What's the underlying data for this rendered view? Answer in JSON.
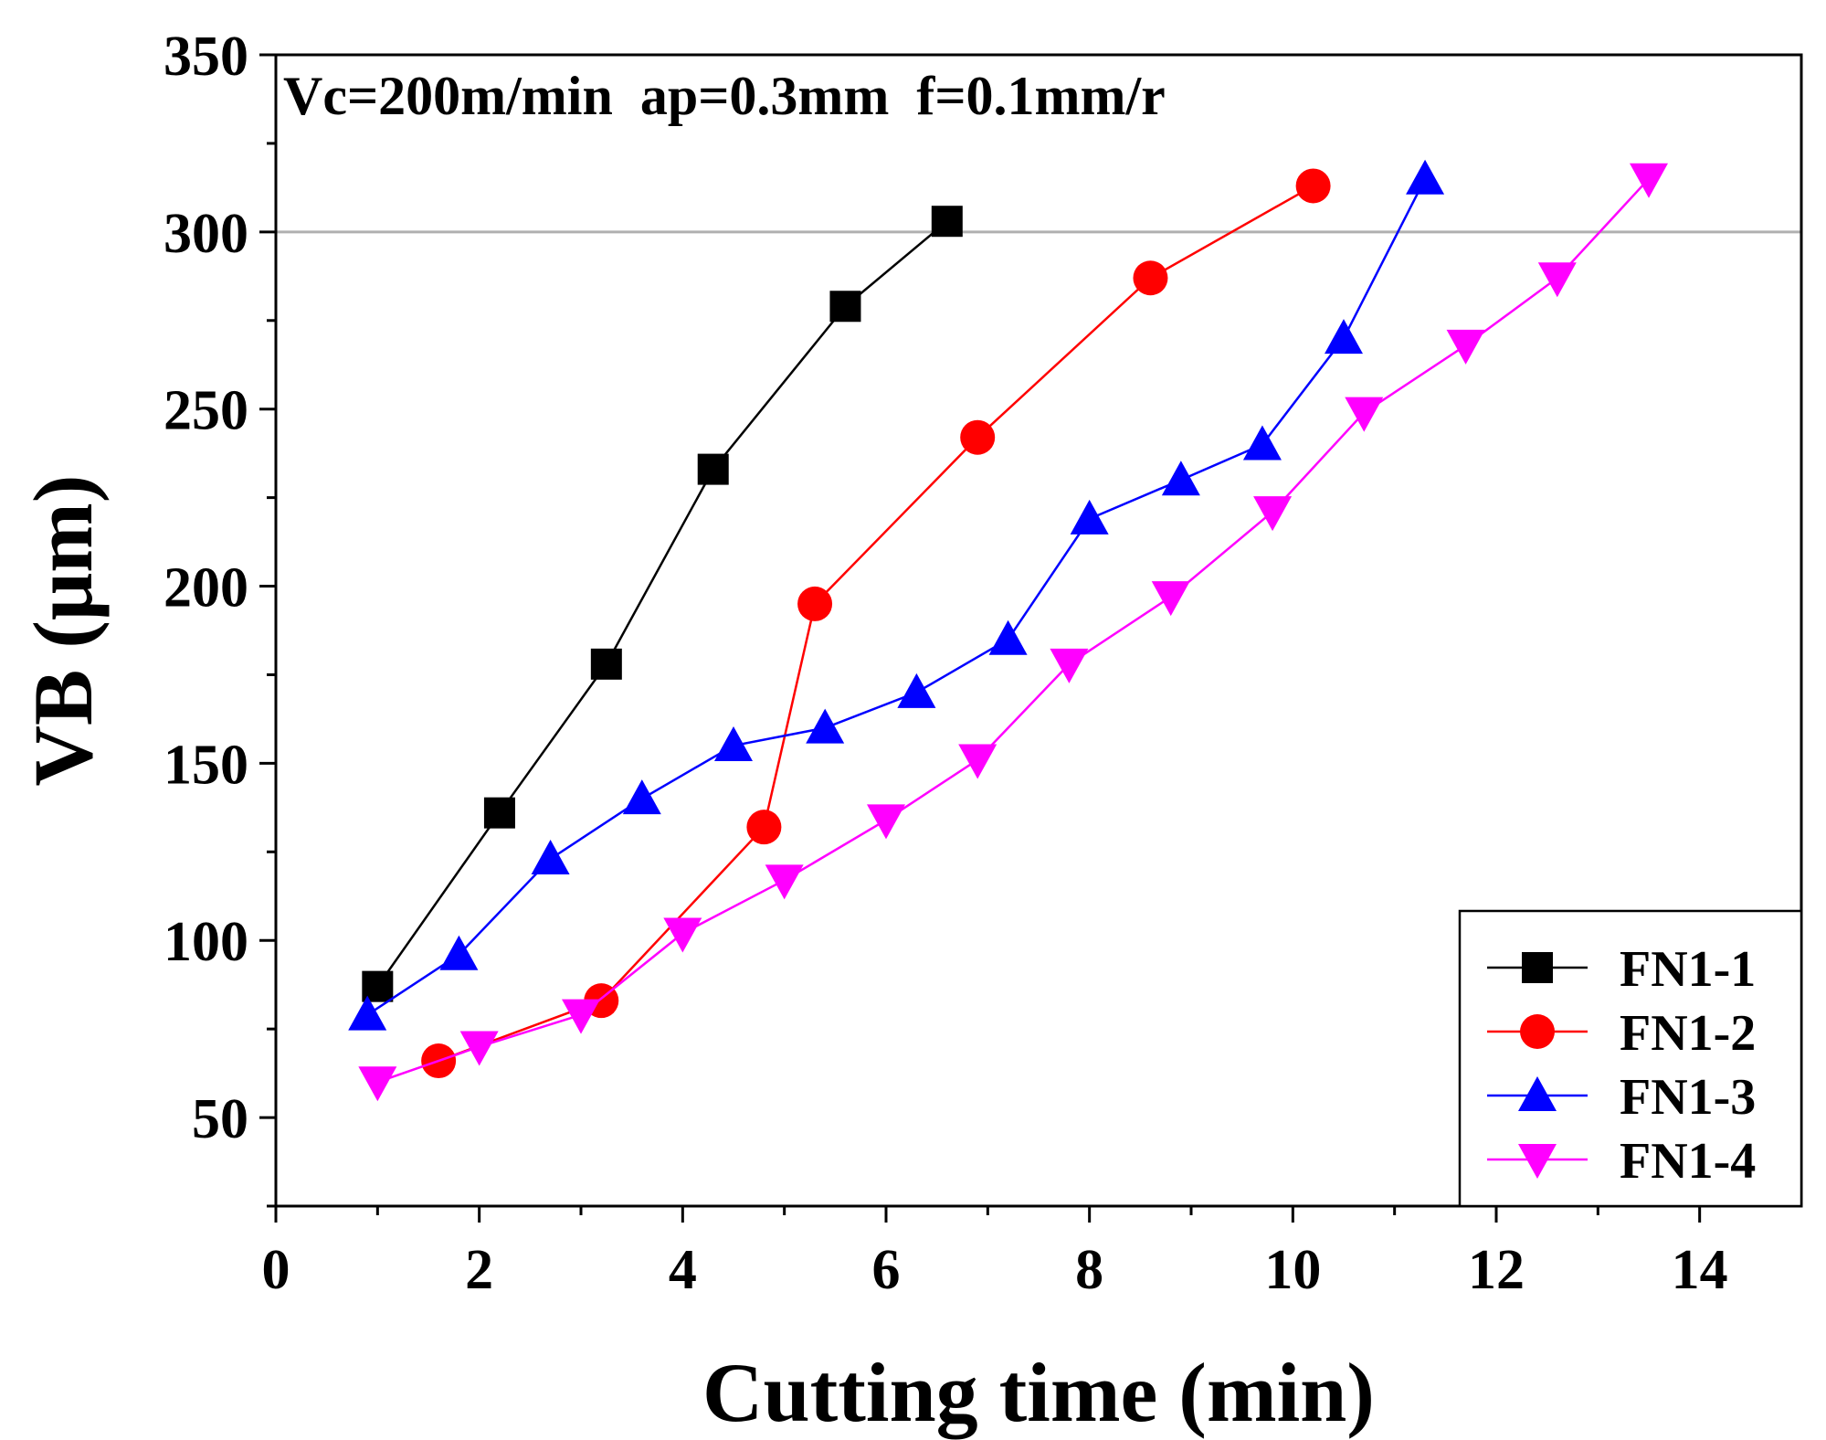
{
  "chart_data": {
    "type": "line",
    "title": "",
    "annotation": "Vc=200m/min  ap=0.3mm  f=0.1mm/r",
    "xlabel": "Cutting time (min)",
    "ylabel": "VB (μm)",
    "xlim": [
      0,
      15
    ],
    "ylim": [
      25,
      350
    ],
    "x_ticks": [
      0,
      2,
      4,
      6,
      8,
      10,
      12,
      14
    ],
    "y_ticks": [
      50,
      100,
      150,
      200,
      250,
      300,
      350
    ],
    "x_tick_labels": [
      "0",
      "2",
      "4",
      "6",
      "8",
      "10",
      "12",
      "14"
    ],
    "y_tick_labels": [
      "50",
      "100",
      "150",
      "200",
      "250",
      "300",
      "350"
    ],
    "reference_line": {
      "y": 300,
      "color": "#b0b0b0"
    },
    "grid": false,
    "legend_position": "bottom-right",
    "series": [
      {
        "name": "FN1-1",
        "color": "#000000",
        "marker": "square",
        "x": [
          1.0,
          2.2,
          3.25,
          4.3,
          5.6,
          6.6
        ],
        "y": [
          87,
          136,
          178,
          233,
          279,
          303
        ]
      },
      {
        "name": "FN1-2",
        "color": "#ff0000",
        "marker": "circle",
        "x": [
          1.6,
          3.2,
          4.8,
          5.3,
          6.9,
          8.6,
          10.2
        ],
        "y": [
          66,
          83,
          132,
          195,
          242,
          287,
          313
        ]
      },
      {
        "name": "FN1-3",
        "color": "#0000ff",
        "marker": "triangle-up",
        "x": [
          0.9,
          1.8,
          2.7,
          3.6,
          4.5,
          5.4,
          6.3,
          7.2,
          8.0,
          8.9,
          9.7,
          10.5,
          11.3
        ],
        "y": [
          79,
          96,
          123,
          140,
          155,
          160,
          170,
          185,
          219,
          230,
          240,
          270,
          315
        ]
      },
      {
        "name": "FN1-4",
        "color": "#ff00ff",
        "marker": "triangle-down",
        "x": [
          1.0,
          2.0,
          3.0,
          4.0,
          5.0,
          6.0,
          6.9,
          7.8,
          8.8,
          9.8,
          10.7,
          11.7,
          12.6,
          13.5
        ],
        "y": [
          60,
          70,
          79,
          102,
          117,
          134,
          151,
          178,
          197,
          221,
          249,
          268,
          287,
          315
        ]
      }
    ]
  }
}
